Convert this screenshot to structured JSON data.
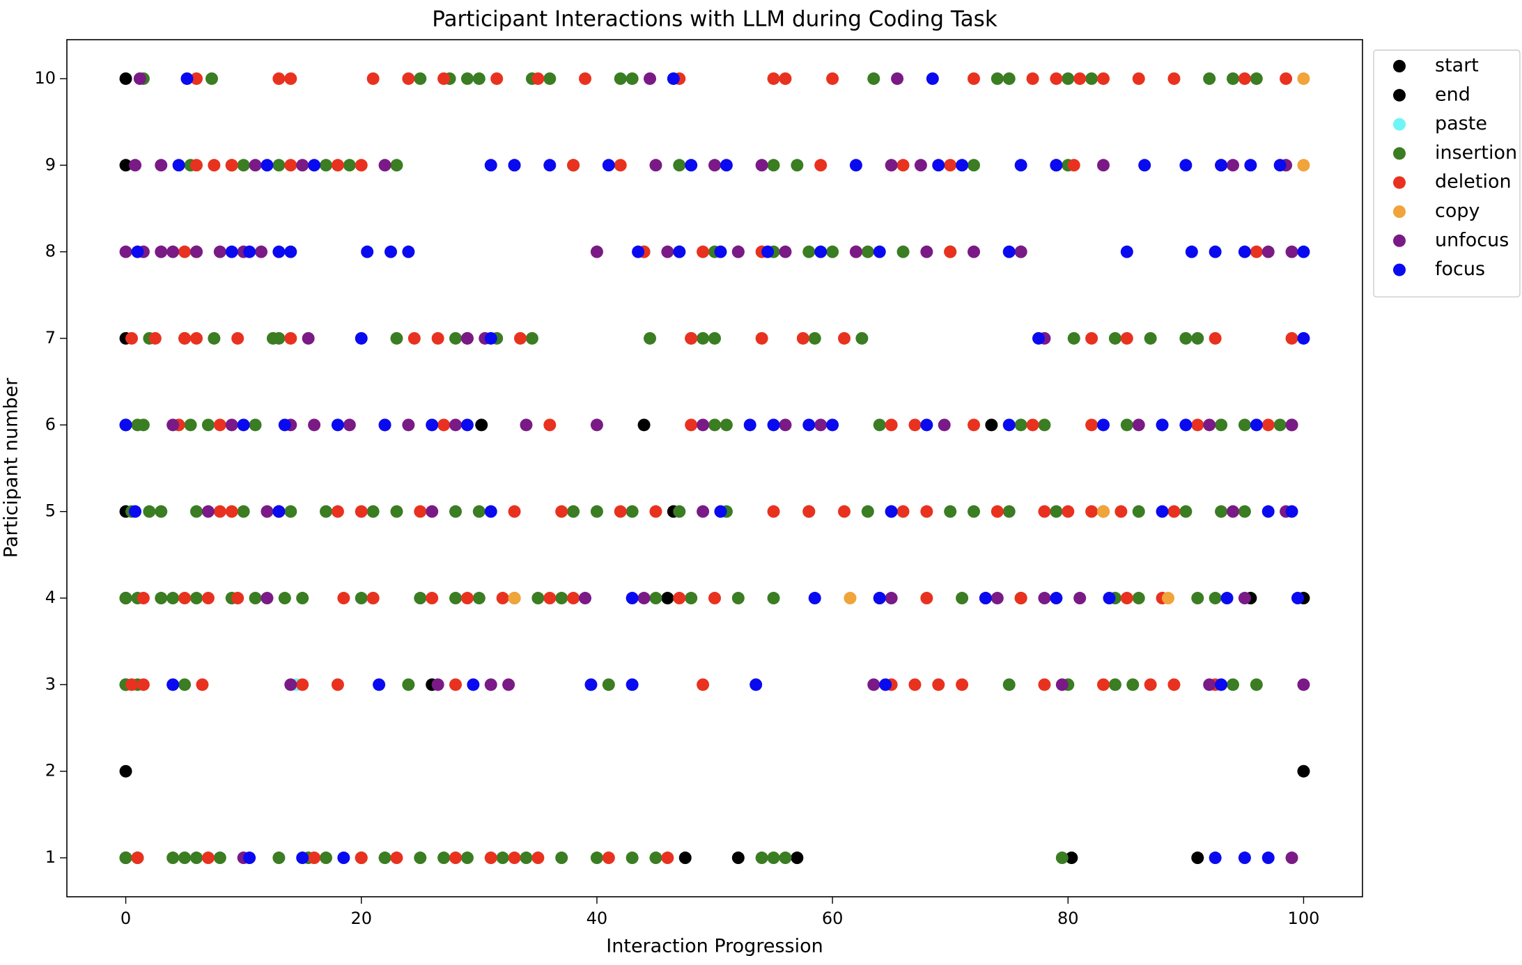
{
  "chart_data": {
    "type": "scatter",
    "title": "Participant Interactions with LLM during Coding Task",
    "x_label": "Interaction Progression",
    "y_label": "Participant number",
    "xlim": [
      -5,
      105
    ],
    "ylim": [
      0.55,
      10.45
    ],
    "xticks": [
      0,
      20,
      40,
      60,
      80,
      100
    ],
    "yticks": [
      1,
      2,
      3,
      4,
      5,
      6,
      7,
      8,
      9,
      10
    ],
    "grid": false,
    "legend": "outside-upper-right",
    "series": [
      {
        "name": "start",
        "color": "#000000",
        "x": [
          0,
          0,
          0,
          0,
          0,
          0,
          0,
          0,
          0
        ],
        "y": [
          10,
          9,
          7,
          6,
          5,
          4,
          3,
          2,
          1
        ]
      },
      {
        "name": "end",
        "color": "#000000",
        "x": [
          100,
          100,
          30.2,
          44,
          73.5,
          46.5,
          13,
          95.5,
          46,
          26,
          47.5,
          52,
          57,
          80.3,
          91
        ],
        "y": [
          2,
          4,
          6,
          6,
          6,
          5,
          5,
          4,
          4,
          3,
          1,
          1,
          1,
          1,
          1
        ]
      },
      {
        "name": "paste",
        "color": "#6ff5f5",
        "x": [
          14.5
        ],
        "y": [
          3
        ]
      },
      {
        "name": "insertion",
        "color": "#3a7d22",
        "x": [
          1.5,
          7.3,
          25,
          27.5,
          29,
          30,
          34.5,
          36,
          42,
          43,
          63.5,
          74,
          75,
          80,
          82,
          92,
          94,
          96,
          5.5,
          9,
          10,
          13,
          17,
          19,
          23,
          38,
          47,
          55,
          57,
          72,
          80,
          6,
          44,
          47,
          50,
          52,
          55,
          58,
          60,
          63,
          66,
          70,
          76,
          2,
          5,
          7.5,
          12.5,
          13,
          23,
          28,
          31.5,
          34.5,
          44.5,
          48,
          49,
          50,
          58.5,
          62.5,
          80.5,
          84,
          87,
          90,
          91,
          1,
          1.5,
          5.5,
          7,
          11,
          50,
          51,
          64,
          76,
          78,
          85,
          88,
          93,
          95,
          98,
          99,
          0.5,
          2,
          3,
          6,
          10,
          14,
          17,
          21,
          23,
          28,
          30,
          38,
          40,
          43,
          47,
          51,
          58,
          63,
          65,
          70,
          72,
          75,
          79,
          83,
          86,
          90,
          93,
          95,
          0,
          1,
          3,
          4,
          6,
          9,
          11,
          13.5,
          15,
          20,
          21,
          25,
          28,
          30,
          33,
          35,
          37,
          45,
          48,
          52,
          55,
          64,
          71,
          76,
          84,
          86,
          91,
          92.5,
          0,
          1,
          5,
          24,
          41,
          75,
          80,
          84,
          85.5,
          94,
          96,
          0,
          1,
          4,
          5,
          6,
          8,
          13,
          15.5,
          17,
          20,
          22,
          25,
          27,
          29,
          32,
          34,
          37,
          40,
          43,
          45,
          54,
          55,
          56,
          79.5
        ],
        "y": [
          10,
          10,
          10,
          10,
          10,
          10,
          10,
          10,
          10,
          10,
          10,
          10,
          10,
          10,
          10,
          10,
          10,
          10,
          9,
          9,
          9,
          9,
          9,
          9,
          9,
          9,
          9,
          9,
          9,
          9,
          9,
          8,
          8,
          8,
          8,
          8,
          8,
          8,
          8,
          8,
          8,
          8,
          8,
          7,
          7,
          7,
          7,
          7,
          7,
          7,
          7,
          7,
          7,
          7,
          7,
          7,
          7,
          7,
          7,
          7,
          7,
          7,
          7,
          6,
          6,
          6,
          6,
          6,
          6,
          6,
          6,
          6,
          6,
          6,
          6,
          6,
          6,
          6,
          6,
          5,
          5,
          5,
          5,
          5,
          5,
          5,
          5,
          5,
          5,
          5,
          5,
          5,
          5,
          5,
          5,
          5,
          5,
          5,
          5,
          5,
          5,
          5,
          5,
          5,
          5,
          5,
          5,
          4,
          4,
          4,
          4,
          4,
          4,
          4,
          4,
          4,
          4,
          4,
          4,
          4,
          4,
          4,
          4,
          4,
          4,
          4,
          4,
          4,
          4,
          4,
          4,
          4,
          4,
          4,
          4,
          3,
          3,
          3,
          3,
          3,
          3,
          3,
          3,
          3,
          3,
          3,
          1,
          1,
          1,
          1,
          1,
          1,
          1,
          1,
          1,
          1,
          1,
          1,
          1,
          1,
          1,
          1,
          1,
          1,
          1,
          1,
          1,
          1,
          1,
          1
        ]
      },
      {
        "name": "deletion",
        "color": "#e8321f",
        "x": [
          6,
          13,
          14,
          21,
          24,
          27,
          31.5,
          35,
          39,
          47,
          55,
          56,
          60,
          72,
          77,
          79,
          81,
          83,
          86,
          89,
          95,
          98.5,
          6,
          7.5,
          9,
          14,
          18,
          20,
          38,
          42,
          59,
          66,
          70,
          80.5,
          93,
          5,
          44,
          49,
          54,
          62,
          70,
          96,
          0.5,
          2.5,
          5,
          6,
          9.5,
          14,
          24.5,
          26.5,
          29,
          33.5,
          48,
          54,
          57.5,
          61,
          82,
          85,
          92.5,
          99,
          4.5,
          8,
          22,
          27,
          36,
          48,
          65,
          67,
          72,
          77,
          82,
          91,
          97,
          8,
          9,
          13,
          18,
          20,
          25,
          33,
          37,
          42,
          45,
          55,
          58,
          61,
          66,
          68,
          74,
          78,
          80,
          82,
          84.5,
          89,
          1.5,
          5,
          7,
          9.5,
          18.5,
          21,
          26,
          29,
          32,
          36,
          38,
          47,
          50,
          68,
          73,
          76,
          85,
          88,
          0.5,
          1.5,
          6.5,
          15,
          18,
          28,
          49,
          65,
          67,
          69,
          71,
          78,
          83,
          87,
          89,
          92.5,
          1,
          7,
          16,
          20,
          23,
          28,
          31,
          33,
          35,
          41,
          46
        ],
        "y": [
          10,
          10,
          10,
          10,
          10,
          10,
          10,
          10,
          10,
          10,
          10,
          10,
          10,
          10,
          10,
          10,
          10,
          10,
          10,
          10,
          10,
          10,
          9,
          9,
          9,
          9,
          9,
          9,
          9,
          9,
          9,
          9,
          9,
          9,
          9,
          8,
          8,
          8,
          8,
          8,
          8,
          8,
          7,
          7,
          7,
          7,
          7,
          7,
          7,
          7,
          7,
          7,
          7,
          7,
          7,
          7,
          7,
          7,
          7,
          7,
          6,
          6,
          6,
          6,
          6,
          6,
          6,
          6,
          6,
          6,
          6,
          6,
          6,
          5,
          5,
          5,
          5,
          5,
          5,
          5,
          5,
          5,
          5,
          5,
          5,
          5,
          5,
          5,
          5,
          5,
          5,
          5,
          5,
          5,
          4,
          4,
          4,
          4,
          4,
          4,
          4,
          4,
          4,
          4,
          4,
          4,
          4,
          4,
          4,
          4,
          4,
          4,
          3,
          3,
          3,
          3,
          3,
          3,
          3,
          3,
          3,
          3,
          3,
          3,
          3,
          3,
          3,
          3,
          1,
          1,
          1,
          1,
          1,
          1,
          1,
          1,
          1,
          1,
          1
        ]
      },
      {
        "name": "copy",
        "color": "#f0a43a",
        "x": [
          100,
          100,
          83,
          33,
          61.5,
          88.5
        ],
        "y": [
          10,
          9,
          5,
          4,
          4,
          4
        ]
      },
      {
        "name": "unfocus",
        "color": "#7a1a86",
        "x": [
          1.2,
          44.5,
          65.5,
          0.8,
          3,
          11,
          15,
          22,
          33,
          45,
          50,
          54,
          65,
          67.5,
          79,
          83,
          94,
          98.5,
          0,
          1.5,
          3,
          4,
          6,
          8,
          10,
          11.5,
          40,
          46,
          52,
          56,
          62,
          68,
          72,
          76,
          97,
          99,
          15.5,
          29,
          30.5,
          78,
          4,
          9,
          14,
          16,
          19,
          24,
          28,
          34,
          40,
          49,
          56,
          59,
          69.5,
          86,
          92,
          99,
          7,
          12,
          26,
          49,
          94,
          98.5,
          12,
          39,
          44,
          65,
          74,
          78,
          81,
          95,
          14,
          26.5,
          31,
          32.5,
          63.5,
          79.5,
          92,
          100,
          10,
          99
        ],
        "y": [
          10,
          10,
          10,
          9,
          9,
          9,
          9,
          9,
          9,
          9,
          9,
          9,
          9,
          9,
          9,
          9,
          9,
          9,
          8,
          8,
          8,
          8,
          8,
          8,
          8,
          8,
          8,
          8,
          8,
          8,
          8,
          8,
          8,
          8,
          8,
          8,
          7,
          7,
          7,
          7,
          6,
          6,
          6,
          6,
          6,
          6,
          6,
          6,
          6,
          6,
          6,
          6,
          6,
          6,
          6,
          6,
          5,
          5,
          5,
          5,
          5,
          5,
          4,
          4,
          4,
          4,
          4,
          4,
          4,
          4,
          3,
          3,
          3,
          3,
          3,
          3,
          3,
          3,
          1,
          1
        ]
      },
      {
        "name": "focus",
        "color": "#0a0af0",
        "x": [
          5.2,
          46.5,
          68.5,
          4.5,
          12,
          16,
          31,
          33,
          36,
          41,
          48,
          51,
          62,
          69,
          71,
          76,
          79,
          86.5,
          90,
          93,
          95.5,
          98,
          1,
          9,
          10.5,
          13,
          14,
          20.5,
          22.5,
          24,
          43.5,
          47,
          50.5,
          54.5,
          59,
          64,
          75,
          85,
          90.5,
          92.5,
          95,
          100,
          20,
          31,
          77.5,
          100,
          0,
          10,
          13.5,
          18,
          22,
          26,
          29,
          53,
          55,
          58,
          60,
          68,
          75,
          83,
          88,
          90,
          96,
          0.8,
          13,
          31,
          50.5,
          65,
          88,
          97,
          99,
          43,
          58.5,
          64,
          73,
          79,
          83.5,
          93.5,
          99.5,
          4,
          21.5,
          29.5,
          39.5,
          43,
          53.5,
          64.5,
          93,
          10.5,
          15,
          18.5,
          92.5,
          95,
          97
        ],
        "y": [
          10,
          10,
          10,
          9,
          9,
          9,
          9,
          9,
          9,
          9,
          9,
          9,
          9,
          9,
          9,
          9,
          9,
          9,
          9,
          9,
          9,
          9,
          8,
          8,
          8,
          8,
          8,
          8,
          8,
          8,
          8,
          8,
          8,
          8,
          8,
          8,
          8,
          8,
          8,
          8,
          8,
          8,
          7,
          7,
          7,
          7,
          6,
          6,
          6,
          6,
          6,
          6,
          6,
          6,
          6,
          6,
          6,
          6,
          6,
          6,
          6,
          6,
          6,
          5,
          5,
          5,
          5,
          5,
          5,
          5,
          5,
          4,
          4,
          4,
          4,
          4,
          4,
          4,
          4,
          3,
          3,
          3,
          3,
          3,
          3,
          3,
          3,
          1,
          1,
          1,
          1,
          1,
          1
        ]
      }
    ]
  }
}
